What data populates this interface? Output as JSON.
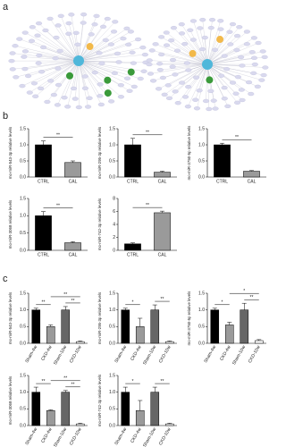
{
  "panel_labels": [
    "a",
    "b",
    "c"
  ],
  "chart_data": [
    {
      "type": "bar",
      "ylabel": "mo-miR-543-3p relative levels",
      "categories": [
        "CTRL",
        "CAL"
      ],
      "values": [
        1.0,
        0.45
      ],
      "errors": [
        0.12,
        0.05
      ],
      "colors": [
        "#000000",
        "#9a9a9a"
      ],
      "ylim": [
        0,
        1.5
      ],
      "yticks": [
        {
          "value": 0,
          "label": "0.0"
        },
        {
          "value": 0.5,
          "label": "0.5"
        },
        {
          "value": 1.0,
          "label": "1.0"
        },
        {
          "value": 1.5,
          "label": "1.5"
        }
      ],
      "annotations": [
        {
          "text": "**",
          "pair": [
            "CTRL",
            "CAL"
          ]
        }
      ]
    },
    {
      "type": "bar",
      "ylabel": "mo-miR-295-3p relative levels",
      "categories": [
        "CTRL",
        "CAL"
      ],
      "values": [
        1.0,
        0.15
      ],
      "errors": [
        0.2,
        0.03
      ],
      "colors": [
        "#000000",
        "#9a9a9a"
      ],
      "ylim": [
        0,
        1.5
      ],
      "yticks": [
        {
          "value": 0,
          "label": "0.0"
        },
        {
          "value": 0.5,
          "label": "0.5"
        },
        {
          "value": 1.0,
          "label": "1.0"
        },
        {
          "value": 1.5,
          "label": "1.5"
        }
      ],
      "annotations": [
        {
          "text": "**",
          "pair": [
            "CTRL",
            "CAL"
          ]
        }
      ]
    },
    {
      "type": "bar",
      "ylabel": "mo-miR-3750-5p relative levels",
      "categories": [
        "CTRL",
        "CAL"
      ],
      "values": [
        1.0,
        0.18
      ],
      "errors": [
        0.05,
        0.02
      ],
      "colors": [
        "#000000",
        "#9a9a9a"
      ],
      "ylim": [
        0,
        1.5
      ],
      "yticks": [
        {
          "value": 0,
          "label": "0.0"
        },
        {
          "value": 0.5,
          "label": "0.5"
        },
        {
          "value": 1.0,
          "label": "1.0"
        },
        {
          "value": 1.5,
          "label": "1.5"
        }
      ],
      "annotations": [
        {
          "text": "**",
          "pair": [
            "CTRL",
            "CAL"
          ]
        }
      ]
    },
    {
      "type": "bar",
      "ylabel": "mo-miR-3068 relative levels",
      "categories": [
        "CTRL",
        "CAL"
      ],
      "values": [
        1.0,
        0.22
      ],
      "errors": [
        0.12,
        0.03
      ],
      "colors": [
        "#000000",
        "#9a9a9a"
      ],
      "ylim": [
        0,
        1.5
      ],
      "yticks": [
        {
          "value": 0,
          "label": "0.0"
        },
        {
          "value": 0.5,
          "label": "0.5"
        },
        {
          "value": 1.0,
          "label": "1.0"
        },
        {
          "value": 1.5,
          "label": "1.5"
        }
      ],
      "annotations": [
        {
          "text": "**",
          "pair": [
            "CTRL",
            "CAL"
          ]
        }
      ]
    },
    {
      "type": "bar",
      "ylabel": "mo-miR-742-3p relative levels",
      "categories": [
        "CTRL",
        "CAL"
      ],
      "values": [
        1.0,
        5.8
      ],
      "errors": [
        0.15,
        0.25
      ],
      "colors": [
        "#000000",
        "#9a9a9a"
      ],
      "ylim": [
        0,
        8
      ],
      "yticks": [
        0,
        2,
        4,
        6,
        8
      ],
      "annotations": [
        {
          "text": "**",
          "pair": [
            "CTRL",
            "CAL"
          ]
        }
      ]
    },
    {
      "type": "bar",
      "ylabel": "mo-miR-543-3p relative levels",
      "categories": [
        "Sham-4w",
        "CKD-4w",
        "Sham-10w",
        "CKD-10w"
      ],
      "values": [
        1.0,
        0.5,
        1.0,
        0.05
      ],
      "errors": [
        0.05,
        0.05,
        0.1,
        0.02
      ],
      "colors": [
        "#000000",
        "#9a9a9a",
        "#666666",
        "#ffffff"
      ],
      "ylim": [
        0,
        1.5
      ],
      "yticks": [
        {
          "value": 0,
          "label": "0.0"
        },
        {
          "value": 0.5,
          "label": "0.5"
        },
        {
          "value": 1.0,
          "label": "1.0"
        },
        {
          "value": 1.5,
          "label": "1.5"
        }
      ],
      "annotations": [
        {
          "text": "**",
          "pair": [
            "Sham-4w",
            "CKD-4w"
          ]
        },
        {
          "text": "**",
          "pair": [
            "Sham-10w",
            "CKD-10w"
          ]
        },
        {
          "text": "**",
          "pair": [
            "CKD-4w",
            "CKD-10w"
          ]
        }
      ]
    },
    {
      "type": "bar",
      "ylabel": "mo-miR-295-3p relative levels",
      "categories": [
        "Sham-4w",
        "CKD-4w",
        "Sham-10w",
        "CKD-10w"
      ],
      "values": [
        1.0,
        0.5,
        1.0,
        0.05
      ],
      "errors": [
        0.05,
        0.25,
        0.15,
        0.02
      ],
      "colors": [
        "#000000",
        "#9a9a9a",
        "#666666",
        "#ffffff"
      ],
      "ylim": [
        0,
        1.5
      ],
      "yticks": [
        {
          "value": 0,
          "label": "0.0"
        },
        {
          "value": 0.5,
          "label": "0.5"
        },
        {
          "value": 1.0,
          "label": "1.0"
        },
        {
          "value": 1.5,
          "label": "1.5"
        }
      ],
      "annotations": [
        {
          "text": "*",
          "pair": [
            "Sham-4w",
            "CKD-4w"
          ]
        },
        {
          "text": "**",
          "pair": [
            "Sham-10w",
            "CKD-10w"
          ]
        }
      ]
    },
    {
      "type": "bar",
      "ylabel": "mo-miR-3750-5p relative levels",
      "categories": [
        "Sham-4w",
        "CKD-4w",
        "Sham-10w",
        "CKD-10w"
      ],
      "values": [
        1.0,
        0.55,
        1.0,
        0.08
      ],
      "errors": [
        0.05,
        0.08,
        0.2,
        0.03
      ],
      "colors": [
        "#000000",
        "#9a9a9a",
        "#666666",
        "#ffffff"
      ],
      "ylim": [
        0,
        1.5
      ],
      "yticks": [
        {
          "value": 0,
          "label": "0.0"
        },
        {
          "value": 0.5,
          "label": "0.5"
        },
        {
          "value": 1.0,
          "label": "1.0"
        },
        {
          "value": 1.5,
          "label": "1.5"
        }
      ],
      "annotations": [
        {
          "text": "*",
          "pair": [
            "Sham-4w",
            "CKD-4w"
          ]
        },
        {
          "text": "**",
          "pair": [
            "Sham-10w",
            "CKD-10w"
          ]
        },
        {
          "text": "*",
          "pair": [
            "CKD-4w",
            "CKD-10w"
          ]
        }
      ]
    },
    {
      "type": "bar",
      "ylabel": "mo-miR-3068 relative levels",
      "categories": [
        "Sham-4w",
        "CKD-4w",
        "Sham-10w",
        "CKD-10w"
      ],
      "values": [
        1.0,
        0.45,
        1.0,
        0.05
      ],
      "errors": [
        0.15,
        0.02,
        0.05,
        0.02
      ],
      "colors": [
        "#000000",
        "#9a9a9a",
        "#666666",
        "#ffffff"
      ],
      "ylim": [
        0,
        1.5
      ],
      "yticks": [
        {
          "value": 0,
          "label": "0.0"
        },
        {
          "value": 0.5,
          "label": "0.5"
        },
        {
          "value": 1.0,
          "label": "1.0"
        },
        {
          "value": 1.5,
          "label": "1.5"
        }
      ],
      "annotations": [
        {
          "text": "**",
          "pair": [
            "Sham-4w",
            "CKD-4w"
          ]
        },
        {
          "text": "**",
          "pair": [
            "Sham-10w",
            "CKD-10w"
          ]
        },
        {
          "text": "**",
          "pair": [
            "CKD-4w",
            "CKD-10w"
          ]
        }
      ]
    },
    {
      "type": "bar",
      "ylabel": "mo-miR-742-3p relative levels",
      "categories": [
        "Sham-4w",
        "CKD-4w",
        "Sham-10w",
        "CKD-10w"
      ],
      "values": [
        1.0,
        0.45,
        1.0,
        0.05
      ],
      "errors": [
        0.15,
        0.3,
        0.15,
        0.02
      ],
      "colors": [
        "#000000",
        "#9a9a9a",
        "#666666",
        "#ffffff"
      ],
      "ylim": [
        0,
        1.5
      ],
      "yticks": [
        {
          "value": 0,
          "label": "0.0"
        },
        {
          "value": 0.5,
          "label": "0.5"
        },
        {
          "value": 1.0,
          "label": "1.0"
        },
        {
          "value": 1.5,
          "label": "1.5"
        }
      ],
      "annotations": [
        {
          "text": "*",
          "pair": [
            "Sham-4w",
            "CKD-4w"
          ]
        },
        {
          "text": "**",
          "pair": [
            "Sham-10w",
            "CKD-10w"
          ]
        }
      ]
    }
  ]
}
